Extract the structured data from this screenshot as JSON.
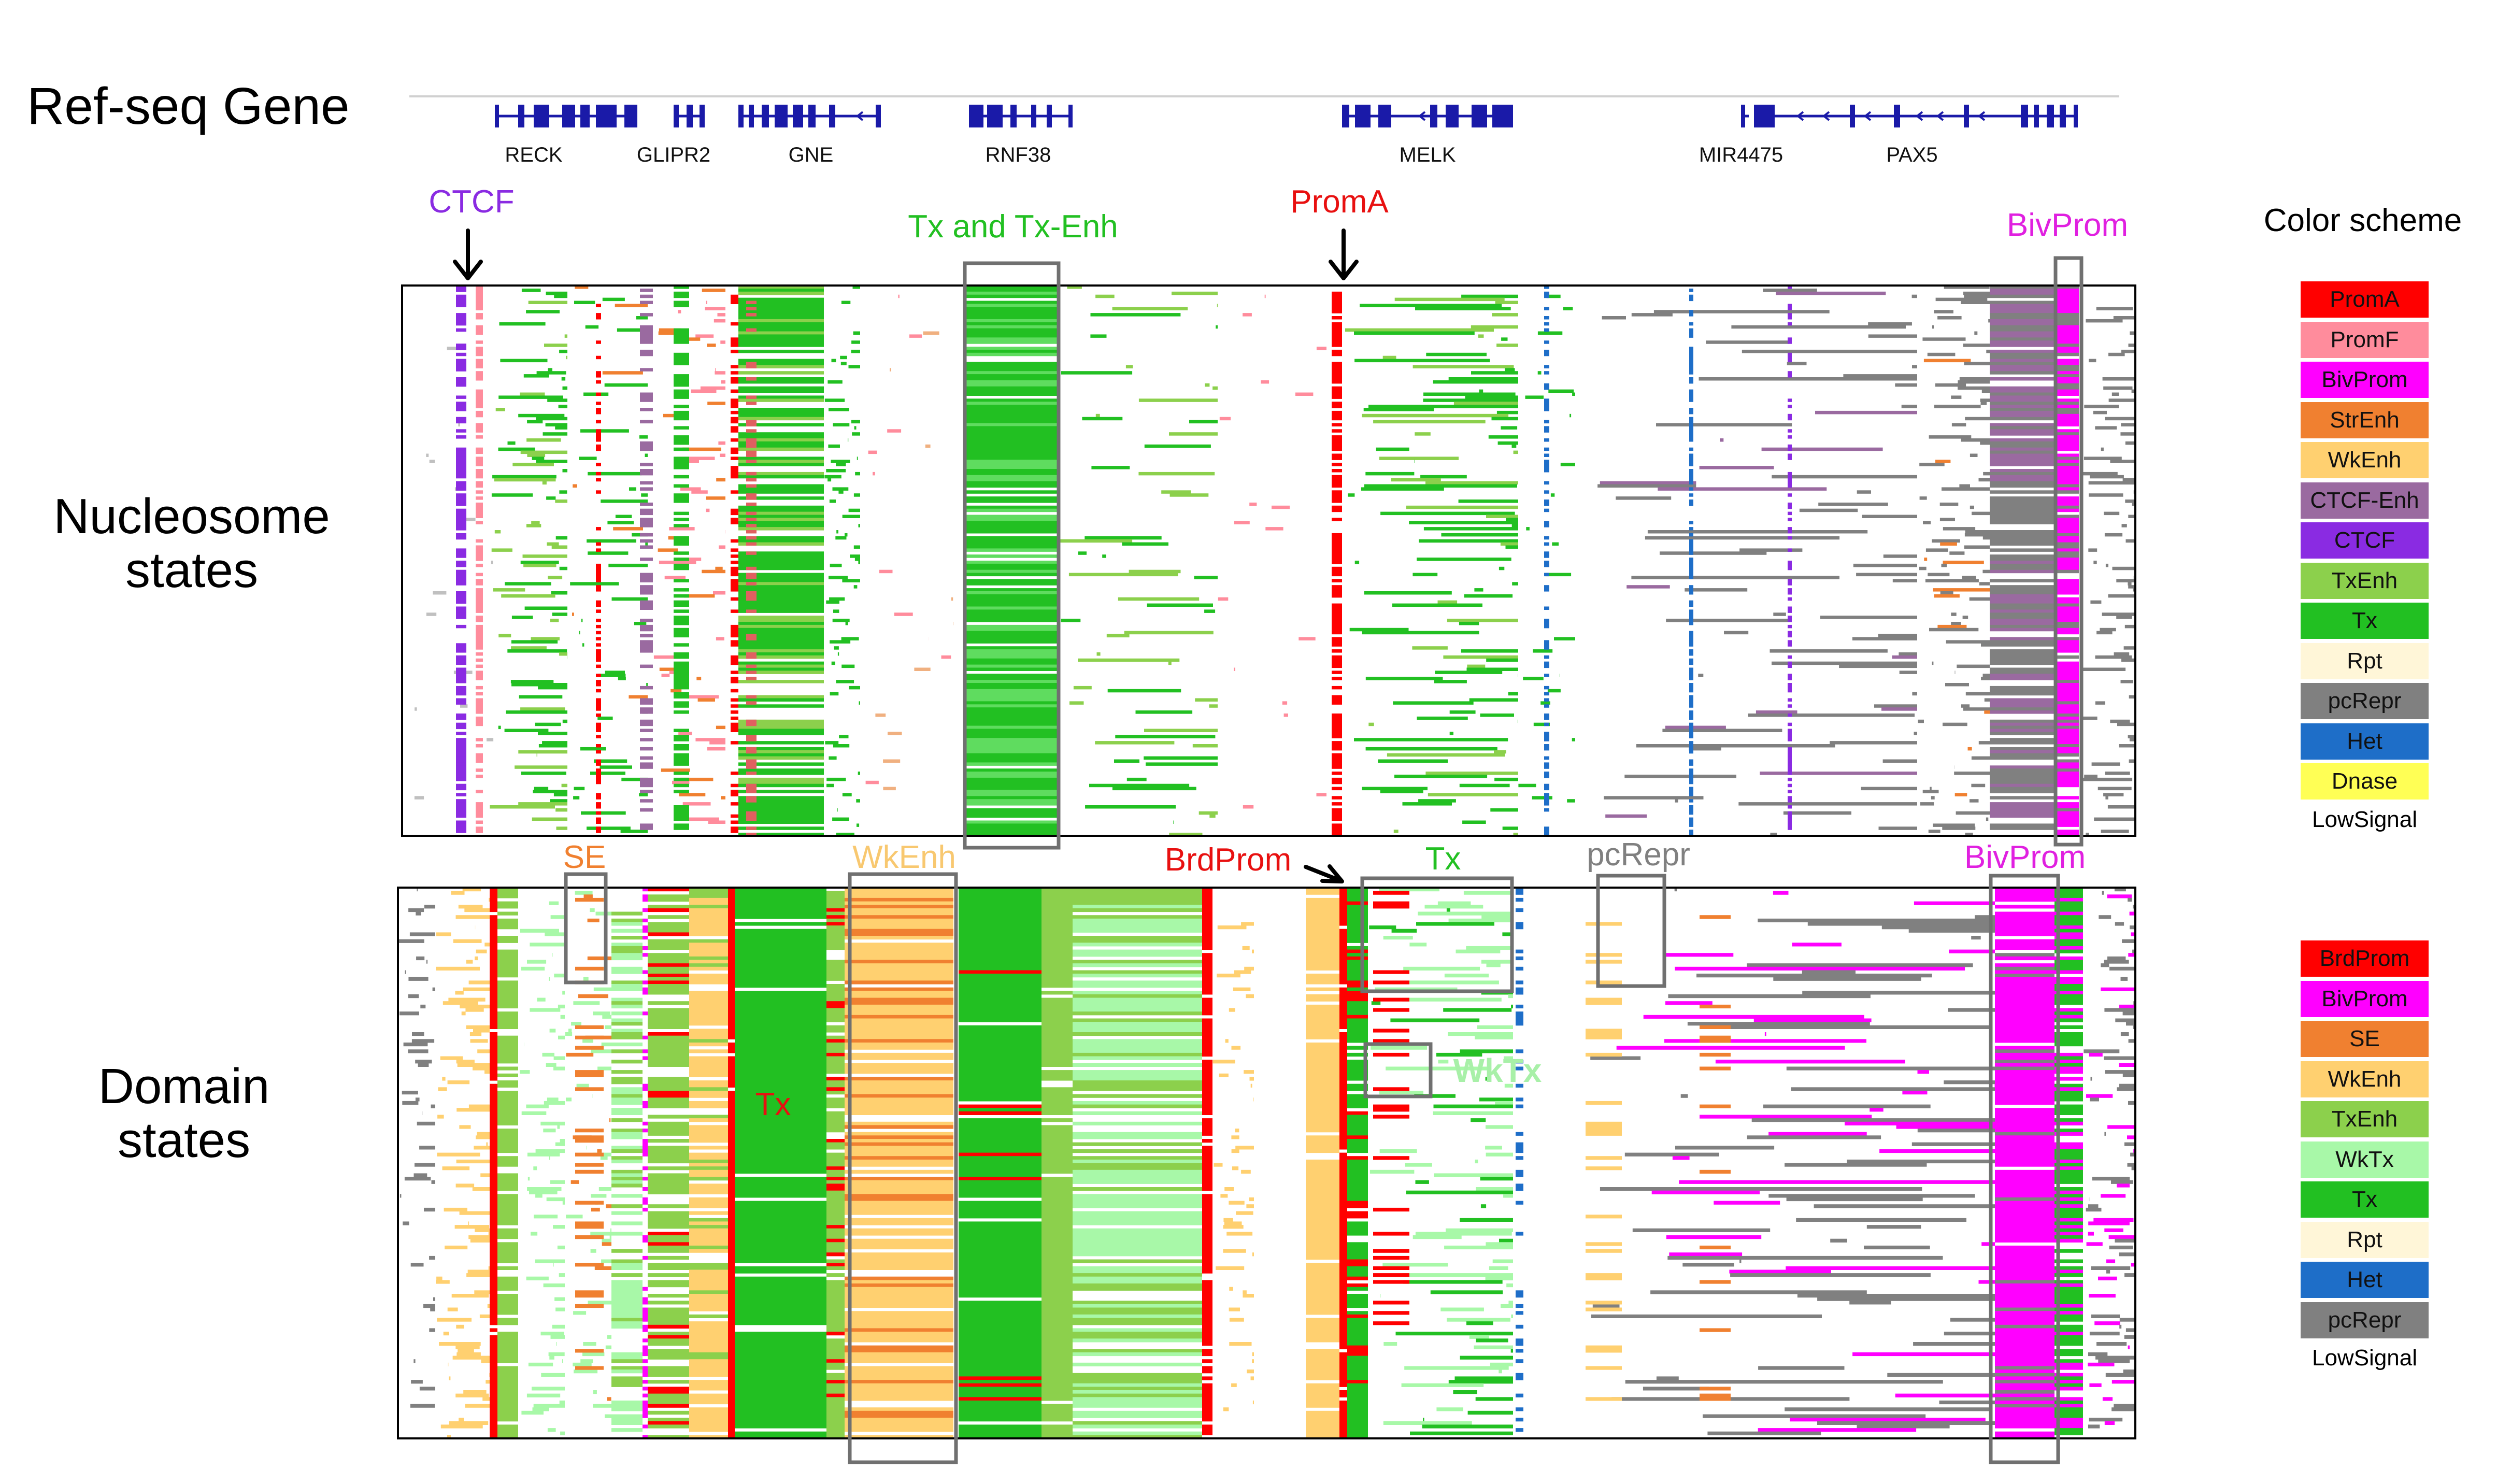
{
  "labels": {
    "refseq": "Ref-seq Gene",
    "nucleosome_line1": "Nucleosome",
    "nucleosome_line2": "states",
    "domain_line1": "Domain",
    "domain_line2": "states",
    "color_scheme": "Color scheme"
  },
  "genes": [
    "RECK",
    "GLIPR2",
    "GNE",
    "RNF38",
    "MELK",
    "MIR4475",
    "PAX5"
  ],
  "nucleosome_annotations": [
    {
      "text": "CTCF",
      "color": "#8a2be2"
    },
    {
      "text": "Tx and Tx-Enh",
      "color": "#22c022"
    },
    {
      "text": "PromA",
      "color": "#e81010"
    },
    {
      "text": "BivProm",
      "color": "#e020e0"
    }
  ],
  "domain_annotations": [
    {
      "text": "SE",
      "color": "#f08030"
    },
    {
      "text": "WkEnh",
      "color": "#f8c870"
    },
    {
      "text": "BrdProm",
      "color": "#e81010"
    },
    {
      "text": "Tx",
      "color": "#22c022"
    },
    {
      "text": "pcRepr",
      "color": "#808080"
    },
    {
      "text": "BivProm",
      "color": "#e020e0"
    },
    {
      "text": "Tx",
      "color": "#e81010"
    },
    {
      "text": "WkTx",
      "color": "#a8f0a8"
    }
  ],
  "nucleosome_legend": [
    {
      "label": "PromA",
      "color": "#ff0000"
    },
    {
      "label": "PromF",
      "color": "#ff8c9c"
    },
    {
      "label": "BivProm",
      "color": "#ff00ff"
    },
    {
      "label": "StrEnh",
      "color": "#f08030"
    },
    {
      "label": "WkEnh",
      "color": "#ffd070"
    },
    {
      "label": "CTCF-Enh",
      "color": "#9a6aa0"
    },
    {
      "label": "CTCF",
      "color": "#8a2be2"
    },
    {
      "label": "TxEnh",
      "color": "#8cd04c"
    },
    {
      "label": "Tx",
      "color": "#22c022"
    },
    {
      "label": "Rpt",
      "color": "#fff6d8"
    },
    {
      "label": "pcRepr",
      "color": "#808080"
    },
    {
      "label": "Het",
      "color": "#1e6ec8"
    },
    {
      "label": "Dnase",
      "color": "#ffff55"
    },
    {
      "label": "LowSignal",
      "color": "#ffffff"
    }
  ],
  "domain_legend": [
    {
      "label": "BrdProm",
      "color": "#ff0000"
    },
    {
      "label": "BivProm",
      "color": "#ff00ff"
    },
    {
      "label": "SE",
      "color": "#f08030"
    },
    {
      "label": "WkEnh",
      "color": "#ffd070"
    },
    {
      "label": "TxEnh",
      "color": "#8cd04c"
    },
    {
      "label": "WkTx",
      "color": "#a8f8a8"
    },
    {
      "label": "Tx",
      "color": "#22c022"
    },
    {
      "label": "Rpt",
      "color": "#fff6d8"
    },
    {
      "label": "Het",
      "color": "#1e6ec8"
    },
    {
      "label": "pcRepr",
      "color": "#808080"
    },
    {
      "label": "LowSignal",
      "color": "#ffffff"
    }
  ]
}
